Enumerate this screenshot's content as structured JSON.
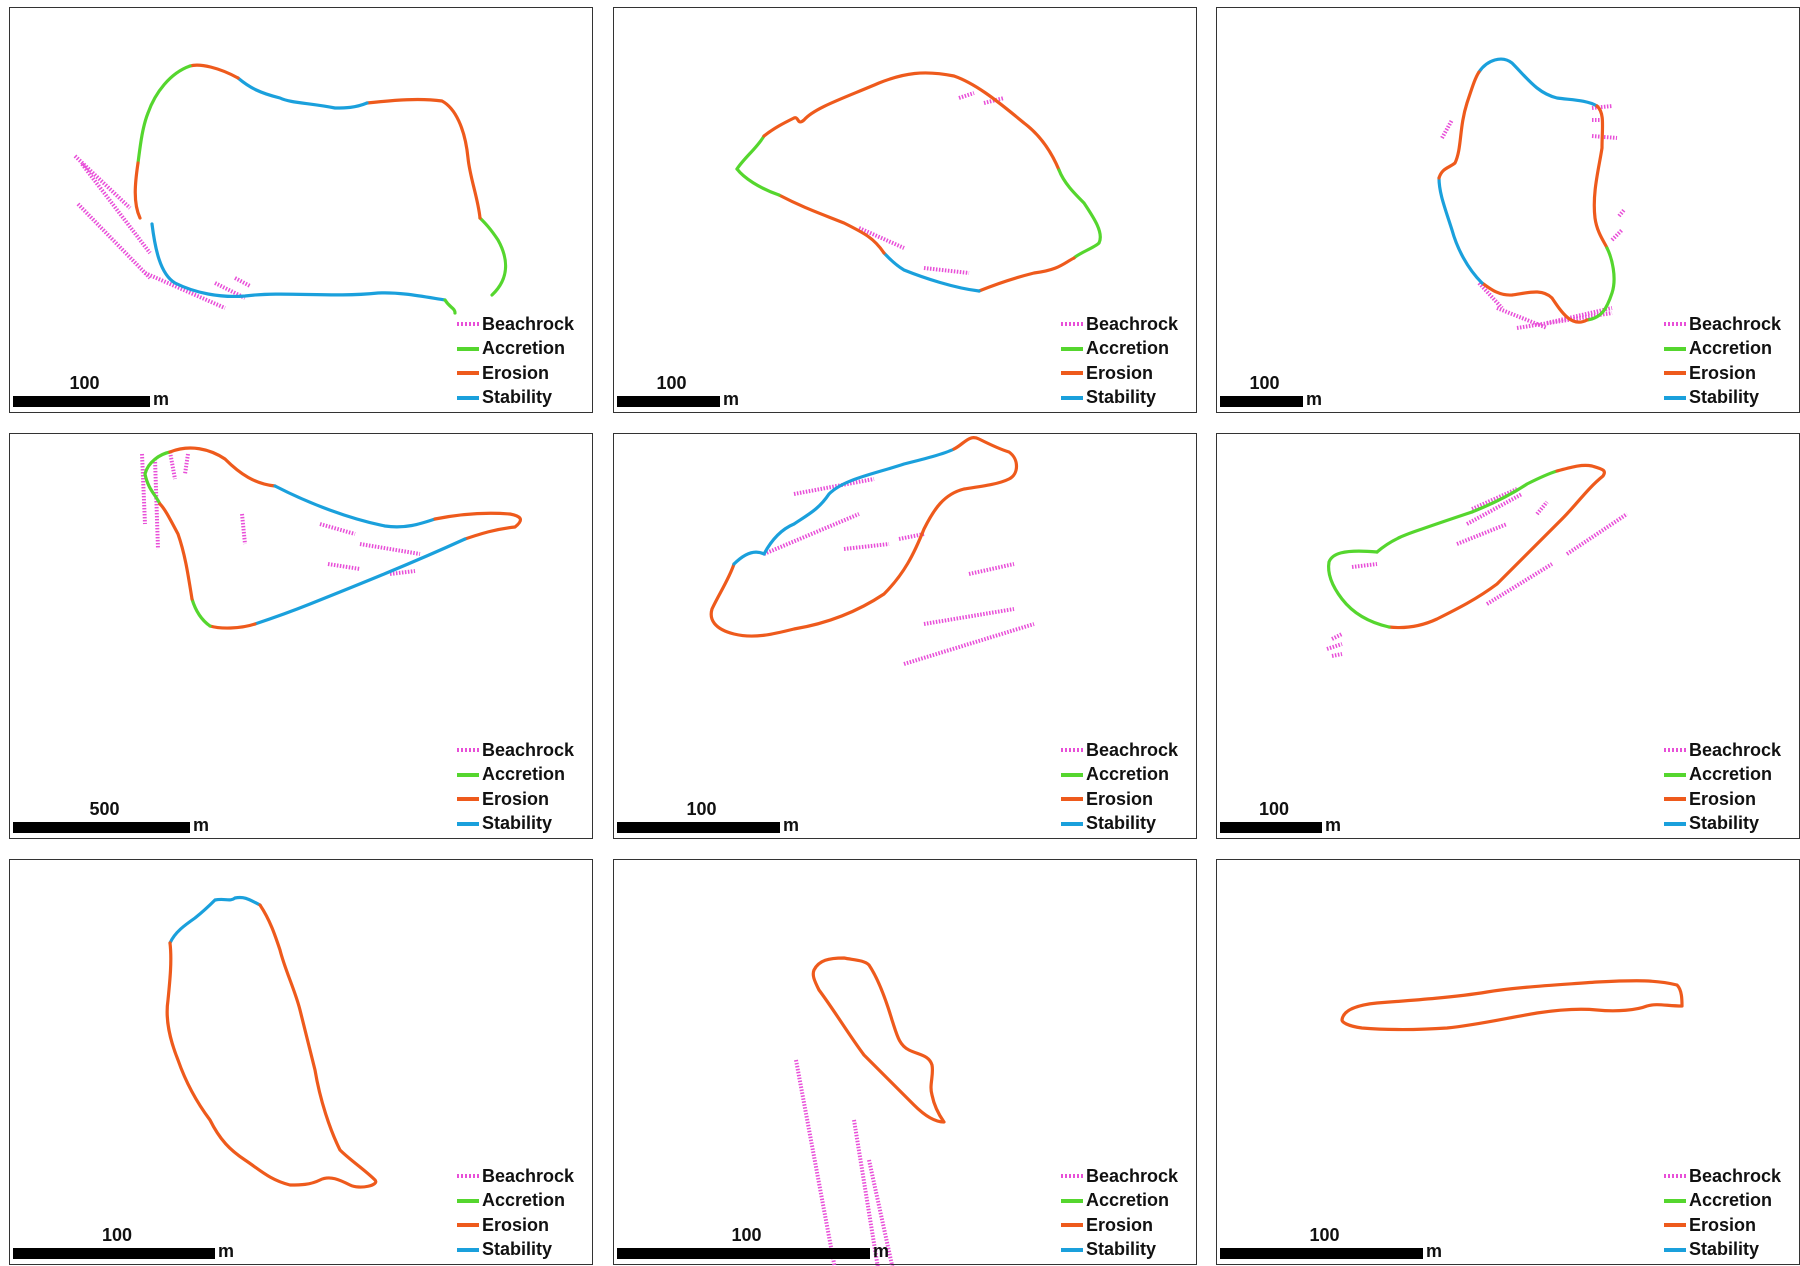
{
  "colors": {
    "beachrock": "#e84fd8",
    "accretion": "#55d62e",
    "erosion": "#ee5a1c",
    "stability": "#1aa0dc"
  },
  "legend": [
    {
      "key": "beachrock",
      "label": "Beachrock",
      "icon": "dashed-line"
    },
    {
      "key": "accretion",
      "label": "Accretion",
      "icon": "solid-line"
    },
    {
      "key": "erosion",
      "label": "Erosion",
      "icon": "solid-line"
    },
    {
      "key": "stability",
      "label": "Stability",
      "icon": "solid-line"
    }
  ],
  "scale_unit": "m",
  "panels": [
    {
      "id": "island-1",
      "scale_value": "100"
    },
    {
      "id": "island-2",
      "scale_value": "100"
    },
    {
      "id": "island-3",
      "scale_value": "100"
    },
    {
      "id": "island-4",
      "scale_value": "500"
    },
    {
      "id": "island-5",
      "scale_value": "100"
    },
    {
      "id": "island-6",
      "scale_value": "100"
    },
    {
      "id": "island-7",
      "scale_value": "100"
    },
    {
      "id": "island-8",
      "scale_value": "100"
    },
    {
      "id": "island-9",
      "scale_value": "100"
    }
  ]
}
